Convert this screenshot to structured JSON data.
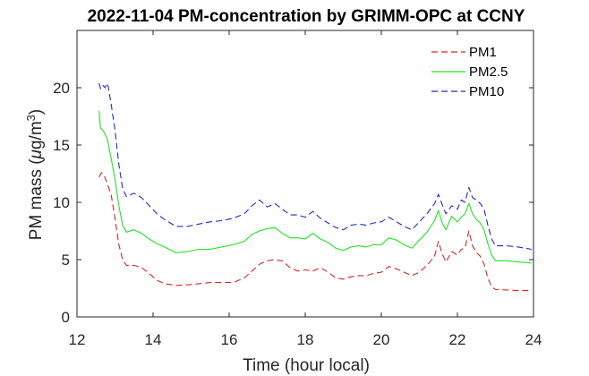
{
  "chart_data": {
    "type": "line",
    "title": "2022-11-04 PM-concentration by GRIMM-OPC at CCNY",
    "xlabel": "Time (hour local)",
    "ylabel_prefix": "PM mass (",
    "ylabel_mu": "μ",
    "ylabel_mid": "g/m",
    "ylabel_sup": "3",
    "ylabel_suffix": ")",
    "xlim": [
      12,
      24
    ],
    "ylim": [
      0,
      25
    ],
    "xticks": [
      12,
      14,
      16,
      18,
      20,
      22,
      24
    ],
    "xtick_labels": [
      "12",
      "14",
      "16",
      "18",
      "20",
      "22",
      "24"
    ],
    "yticks": [
      0,
      5,
      10,
      15,
      20
    ],
    "ytick_labels": [
      "0",
      "5",
      "10",
      "15",
      "20"
    ],
    "grid": false,
    "legend_position": "top-right",
    "series": [
      {
        "name": "PM1",
        "color": "#d62728",
        "dash": "dashed",
        "points": [
          [
            12.58,
            12.2
          ],
          [
            12.65,
            12.6
          ],
          [
            12.72,
            12.3
          ],
          [
            12.8,
            11.6
          ],
          [
            12.9,
            10.6
          ],
          [
            13.0,
            8.6
          ],
          [
            13.1,
            6.3
          ],
          [
            13.2,
            5.0
          ],
          [
            13.3,
            4.5
          ],
          [
            13.5,
            4.5
          ],
          [
            13.7,
            4.3
          ],
          [
            13.9,
            3.8
          ],
          [
            14.1,
            3.2
          ],
          [
            14.3,
            2.9
          ],
          [
            14.6,
            2.75
          ],
          [
            14.9,
            2.8
          ],
          [
            15.2,
            2.9
          ],
          [
            15.5,
            3.0
          ],
          [
            15.8,
            3.0
          ],
          [
            16.1,
            3.0
          ],
          [
            16.4,
            3.4
          ],
          [
            16.6,
            4.0
          ],
          [
            16.8,
            4.6
          ],
          [
            17.0,
            4.9
          ],
          [
            17.2,
            5.0
          ],
          [
            17.4,
            4.9
          ],
          [
            17.6,
            4.3
          ],
          [
            17.8,
            4.0
          ],
          [
            18.0,
            4.1
          ],
          [
            18.2,
            4.0
          ],
          [
            18.4,
            4.3
          ],
          [
            18.6,
            3.9
          ],
          [
            18.8,
            3.4
          ],
          [
            19.0,
            3.3
          ],
          [
            19.2,
            3.5
          ],
          [
            19.4,
            3.6
          ],
          [
            19.6,
            3.6
          ],
          [
            19.8,
            3.8
          ],
          [
            20.0,
            3.9
          ],
          [
            20.2,
            4.4
          ],
          [
            20.4,
            4.2
          ],
          [
            20.6,
            3.9
          ],
          [
            20.8,
            3.6
          ],
          [
            21.0,
            3.9
          ],
          [
            21.2,
            4.5
          ],
          [
            21.4,
            5.3
          ],
          [
            21.5,
            6.6
          ],
          [
            21.6,
            5.5
          ],
          [
            21.7,
            4.8
          ],
          [
            21.85,
            5.7
          ],
          [
            22.0,
            5.4
          ],
          [
            22.1,
            5.9
          ],
          [
            22.2,
            6.0
          ],
          [
            22.3,
            7.5
          ],
          [
            22.4,
            6.2
          ],
          [
            22.5,
            5.6
          ],
          [
            22.6,
            5.3
          ],
          [
            22.7,
            4.6
          ],
          [
            22.8,
            3.4
          ],
          [
            22.9,
            2.6
          ],
          [
            23.0,
            2.4
          ],
          [
            23.3,
            2.35
          ],
          [
            23.6,
            2.3
          ],
          [
            23.95,
            2.3
          ]
        ]
      },
      {
        "name": "PM2.5",
        "color": "#22e322",
        "dash": "solid",
        "points": [
          [
            12.58,
            18.0
          ],
          [
            12.62,
            16.5
          ],
          [
            12.7,
            16.2
          ],
          [
            12.8,
            15.5
          ],
          [
            12.9,
            13.8
          ],
          [
            13.0,
            12.0
          ],
          [
            13.1,
            9.7
          ],
          [
            13.2,
            8.0
          ],
          [
            13.3,
            7.4
          ],
          [
            13.5,
            7.6
          ],
          [
            13.7,
            7.3
          ],
          [
            13.9,
            6.8
          ],
          [
            14.1,
            6.4
          ],
          [
            14.3,
            6.1
          ],
          [
            14.6,
            5.6
          ],
          [
            14.9,
            5.7
          ],
          [
            15.2,
            5.9
          ],
          [
            15.5,
            5.9
          ],
          [
            15.8,
            6.1
          ],
          [
            16.1,
            6.3
          ],
          [
            16.4,
            6.6
          ],
          [
            16.6,
            7.2
          ],
          [
            16.8,
            7.5
          ],
          [
            17.0,
            7.7
          ],
          [
            17.2,
            7.8
          ],
          [
            17.4,
            7.3
          ],
          [
            17.6,
            6.9
          ],
          [
            17.8,
            6.9
          ],
          [
            18.0,
            6.8
          ],
          [
            18.2,
            7.3
          ],
          [
            18.4,
            6.8
          ],
          [
            18.6,
            6.5
          ],
          [
            18.8,
            6.0
          ],
          [
            19.0,
            5.8
          ],
          [
            19.2,
            6.1
          ],
          [
            19.4,
            6.2
          ],
          [
            19.6,
            6.1
          ],
          [
            19.8,
            6.3
          ],
          [
            20.0,
            6.3
          ],
          [
            20.2,
            6.9
          ],
          [
            20.4,
            6.7
          ],
          [
            20.6,
            6.3
          ],
          [
            20.8,
            6.0
          ],
          [
            21.0,
            6.7
          ],
          [
            21.2,
            7.4
          ],
          [
            21.4,
            8.4
          ],
          [
            21.5,
            9.3
          ],
          [
            21.6,
            8.2
          ],
          [
            21.7,
            7.6
          ],
          [
            21.85,
            8.8
          ],
          [
            22.0,
            8.3
          ],
          [
            22.1,
            8.7
          ],
          [
            22.2,
            9.0
          ],
          [
            22.3,
            9.9
          ],
          [
            22.4,
            9.0
          ],
          [
            22.5,
            8.5
          ],
          [
            22.6,
            8.2
          ],
          [
            22.7,
            7.6
          ],
          [
            22.8,
            6.4
          ],
          [
            22.9,
            5.4
          ],
          [
            23.0,
            4.9
          ],
          [
            23.3,
            4.9
          ],
          [
            23.6,
            4.8
          ],
          [
            23.95,
            4.7
          ]
        ]
      },
      {
        "name": "PM10",
        "color": "#1f2cc4",
        "dash": "dashed",
        "points": [
          [
            12.58,
            20.4
          ],
          [
            12.62,
            19.9
          ],
          [
            12.68,
            20.2
          ],
          [
            12.74,
            20.0
          ],
          [
            12.78,
            20.4
          ],
          [
            12.82,
            20.1
          ],
          [
            12.9,
            18.5
          ],
          [
            13.0,
            16.3
          ],
          [
            13.1,
            13.3
          ],
          [
            13.2,
            11.2
          ],
          [
            13.3,
            10.5
          ],
          [
            13.5,
            10.8
          ],
          [
            13.7,
            10.4
          ],
          [
            13.9,
            9.7
          ],
          [
            14.1,
            9.0
          ],
          [
            14.3,
            8.5
          ],
          [
            14.6,
            7.9
          ],
          [
            14.9,
            7.9
          ],
          [
            15.2,
            8.1
          ],
          [
            15.5,
            8.3
          ],
          [
            15.8,
            8.4
          ],
          [
            16.1,
            8.6
          ],
          [
            16.4,
            9.0
          ],
          [
            16.6,
            9.7
          ],
          [
            16.8,
            10.2
          ],
          [
            17.0,
            9.6
          ],
          [
            17.2,
            9.9
          ],
          [
            17.4,
            9.4
          ],
          [
            17.6,
            8.9
          ],
          [
            17.8,
            8.9
          ],
          [
            18.0,
            8.7
          ],
          [
            18.2,
            9.2
          ],
          [
            18.4,
            8.6
          ],
          [
            18.6,
            8.2
          ],
          [
            18.8,
            7.8
          ],
          [
            19.0,
            7.6
          ],
          [
            19.2,
            8.0
          ],
          [
            19.4,
            8.1
          ],
          [
            19.6,
            8.0
          ],
          [
            19.8,
            8.2
          ],
          [
            20.0,
            8.3
          ],
          [
            20.2,
            8.7
          ],
          [
            20.4,
            8.3
          ],
          [
            20.6,
            7.9
          ],
          [
            20.8,
            7.6
          ],
          [
            21.0,
            8.3
          ],
          [
            21.2,
            9.0
          ],
          [
            21.4,
            9.9
          ],
          [
            21.5,
            10.7
          ],
          [
            21.6,
            9.8
          ],
          [
            21.7,
            9.0
          ],
          [
            21.85,
            9.7
          ],
          [
            22.0,
            9.4
          ],
          [
            22.1,
            10.2
          ],
          [
            22.2,
            10.0
          ],
          [
            22.3,
            11.3
          ],
          [
            22.4,
            10.4
          ],
          [
            22.5,
            10.2
          ],
          [
            22.6,
            9.9
          ],
          [
            22.7,
            9.4
          ],
          [
            22.8,
            8.0
          ],
          [
            22.9,
            6.8
          ],
          [
            23.0,
            6.2
          ],
          [
            23.3,
            6.2
          ],
          [
            23.6,
            6.1
          ],
          [
            23.95,
            5.9
          ]
        ]
      }
    ]
  }
}
